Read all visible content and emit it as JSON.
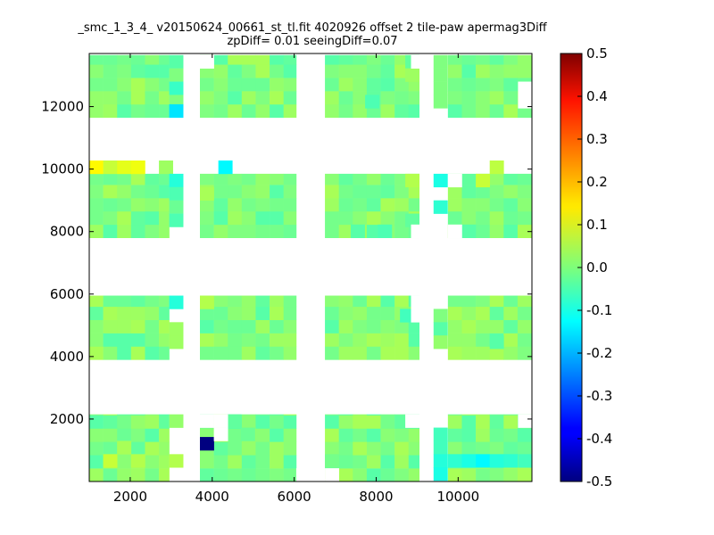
{
  "chart_data": {
    "type": "heatmap",
    "title_line1": "_smc_1_3_4_ v20150624_00661_st_tl.fit 4020926 offset 2 tile-paw apermag3Diff",
    "title_line2": "zpDiff= 0.01 seeingDiff=0.07",
    "xlim": [
      1000,
      11800
    ],
    "ylim": [
      0,
      13700
    ],
    "x_ticks": [
      2000,
      4000,
      6000,
      8000,
      10000
    ],
    "y_ticks": [
      2000,
      4000,
      6000,
      8000,
      10000,
      12000
    ],
    "colorbar": {
      "min": -0.5,
      "max": 0.5,
      "colormap": "jet",
      "ticks": [
        "0.5",
        "0.4",
        "0.3",
        "0.2",
        "0.1",
        "0.0",
        "-0.1",
        "-0.2",
        "-0.3",
        "-0.4",
        "-0.5"
      ]
    },
    "cell_width": 340,
    "cell_height": 425,
    "base_value": 0.0,
    "detector_blocks": [
      {
        "x": [
          1000,
          2950
        ],
        "y": [
          7800,
          9850
        ]
      },
      {
        "x": [
          1000,
          2950
        ],
        "y": [
          3900,
          5950
        ]
      },
      {
        "x": [
          1000,
          2950
        ],
        "y": [
          0,
          2150
        ]
      },
      {
        "x": [
          1000,
          2950
        ],
        "y": [
          11650,
          13650
        ]
      },
      {
        "x": [
          3700,
          6050
        ],
        "y": [
          11650,
          13650
        ]
      },
      {
        "x": [
          3700,
          6050
        ],
        "y": [
          7800,
          9850
        ]
      },
      {
        "x": [
          3700,
          6050
        ],
        "y": [
          3900,
          5950
        ]
      },
      {
        "x": [
          3700,
          6050
        ],
        "y": [
          0,
          2150
        ]
      },
      {
        "x": [
          6750,
          9050
        ],
        "y": [
          11650,
          13650
        ]
      },
      {
        "x": [
          6750,
          9050
        ],
        "y": [
          7800,
          9850
        ]
      },
      {
        "x": [
          6750,
          9050
        ],
        "y": [
          3900,
          5950
        ]
      },
      {
        "x": [
          6750,
          9050
        ],
        "y": [
          0,
          2150
        ]
      },
      {
        "x": [
          9750,
          11800
        ],
        "y": [
          11650,
          13650
        ]
      },
      {
        "x": [
          9750,
          11800
        ],
        "y": [
          7800,
          9850
        ]
      },
      {
        "x": [
          9750,
          11800
        ],
        "y": [
          3900,
          5950
        ]
      },
      {
        "x": [
          9750,
          11800
        ],
        "y": [
          0,
          2150
        ]
      }
    ],
    "extra_cells": [
      {
        "x": 2950,
        "y": 13225,
        "v": -0.04
      },
      {
        "x": 2950,
        "y": 12800,
        "v": 0.0
      },
      {
        "x": 2950,
        "y": 12375,
        "v": -0.07
      },
      {
        "x": 2950,
        "y": 11950,
        "v": 0.0
      },
      {
        "x": 2950,
        "y": 11650,
        "v": -0.15
      },
      {
        "x": 1000,
        "y": 9850,
        "v": 0.13
      },
      {
        "x": 1340,
        "y": 9850,
        "v": 0.07
      },
      {
        "x": 1680,
        "y": 9850,
        "v": 0.1
      },
      {
        "x": 2020,
        "y": 9850,
        "v": 0.11
      },
      {
        "x": 2700,
        "y": 9850,
        "v": 0.03
      },
      {
        "x": 4150,
        "y": 9850,
        "v": -0.13
      },
      {
        "x": 2950,
        "y": 9425,
        "v": -0.09
      },
      {
        "x": 2950,
        "y": 9000,
        "v": -0.05
      },
      {
        "x": 2950,
        "y": 8575,
        "v": -0.02
      },
      {
        "x": 2950,
        "y": 8150,
        "v": -0.05
      },
      {
        "x": 2950,
        "y": 5525,
        "v": -0.09
      },
      {
        "x": 2950,
        "y": 4675,
        "v": 0.03
      },
      {
        "x": 2950,
        "y": 4250,
        "v": 0.03
      },
      {
        "x": 2950,
        "y": 1725,
        "v": 0.02
      },
      {
        "x": 2950,
        "y": 450,
        "v": 0.05
      },
      {
        "x": 3700,
        "y": 1000,
        "v": -0.5
      },
      {
        "x": 9400,
        "y": 13225,
        "v": 0.0
      },
      {
        "x": 9400,
        "y": 12800,
        "v": 0.0
      },
      {
        "x": 9400,
        "y": 12375,
        "v": 0.0
      },
      {
        "x": 9400,
        "y": 11950,
        "v": 0.0
      },
      {
        "x": 9400,
        "y": 9425,
        "v": -0.1
      },
      {
        "x": 9400,
        "y": 8575,
        "v": -0.08
      },
      {
        "x": 9400,
        "y": 5100,
        "v": 0.0
      },
      {
        "x": 9400,
        "y": 4675,
        "v": -0.04
      },
      {
        "x": 9400,
        "y": 4250,
        "v": 0.02
      },
      {
        "x": 9400,
        "y": 1300,
        "v": -0.06
      },
      {
        "x": 9400,
        "y": 875,
        "v": -0.06
      },
      {
        "x": 9400,
        "y": 450,
        "v": -0.09
      },
      {
        "x": 9400,
        "y": 30,
        "v": -0.1
      }
    ],
    "blank_cells": [
      {
        "x": 3700,
        "y": 13225
      },
      {
        "x": 3700,
        "y": 1725
      },
      {
        "x": 4040,
        "y": 1300
      },
      {
        "x": 4040,
        "y": 1725
      },
      {
        "x": 6050,
        "y": 0
      },
      {
        "x": 8850,
        "y": 5525
      },
      {
        "x": 8850,
        "y": 5100
      },
      {
        "x": 6750,
        "y": 0
      },
      {
        "x": 8710,
        "y": 1725
      },
      {
        "x": 11460,
        "y": 1725
      },
      {
        "x": 11460,
        "y": 11950
      },
      {
        "x": 11460,
        "y": 12375
      },
      {
        "x": 8850,
        "y": 13225
      },
      {
        "x": 8850,
        "y": 7800
      },
      {
        "x": 9750,
        "y": 7800
      },
      {
        "x": 9750,
        "y": 9425
      }
    ],
    "special_cells": [
      {
        "x": 8710,
        "y": 13225,
        "v": -0.03
      },
      {
        "x": 8710,
        "y": 12800,
        "v": 0.03
      },
      {
        "x": 7730,
        "y": 11950,
        "v": -0.05
      },
      {
        "x": 8710,
        "y": 9425,
        "v": 0.05
      },
      {
        "x": 8710,
        "y": 8150,
        "v": -0.03
      },
      {
        "x": 7380,
        "y": 7800,
        "v": -0.04
      },
      {
        "x": 8040,
        "y": 7800,
        "v": -0.05
      },
      {
        "x": 8580,
        "y": 5100,
        "v": -0.06
      },
      {
        "x": 10090,
        "y": 7800,
        "v": -0.04
      },
      {
        "x": 10430,
        "y": 9425,
        "v": 0.07
      },
      {
        "x": 10770,
        "y": 4250,
        "v": -0.04
      },
      {
        "x": 9750,
        "y": 450,
        "v": -0.08
      },
      {
        "x": 10090,
        "y": 450,
        "v": -0.1
      },
      {
        "x": 10430,
        "y": 450,
        "v": -0.13
      },
      {
        "x": 10770,
        "y": 450,
        "v": -0.09
      },
      {
        "x": 11110,
        "y": 450,
        "v": -0.08
      },
      {
        "x": 11460,
        "y": 450,
        "v": -0.06
      },
      {
        "x": 1340,
        "y": 450,
        "v": 0.07
      },
      {
        "x": 1680,
        "y": 875,
        "v": 0.04
      },
      {
        "x": 2020,
        "y": 450,
        "v": 0.05
      },
      {
        "x": 3700,
        "y": 5525,
        "v": 0.05
      },
      {
        "x": 3700,
        "y": 9000,
        "v": 0.04
      },
      {
        "x": 4700,
        "y": 1300,
        "v": -0.02
      },
      {
        "x": 6750,
        "y": 450,
        "v": -0.01
      },
      {
        "x": 4360,
        "y": 1725,
        "v": -0.03
      },
      {
        "x": 10770,
        "y": 9850,
        "v": 0.06
      }
    ]
  }
}
